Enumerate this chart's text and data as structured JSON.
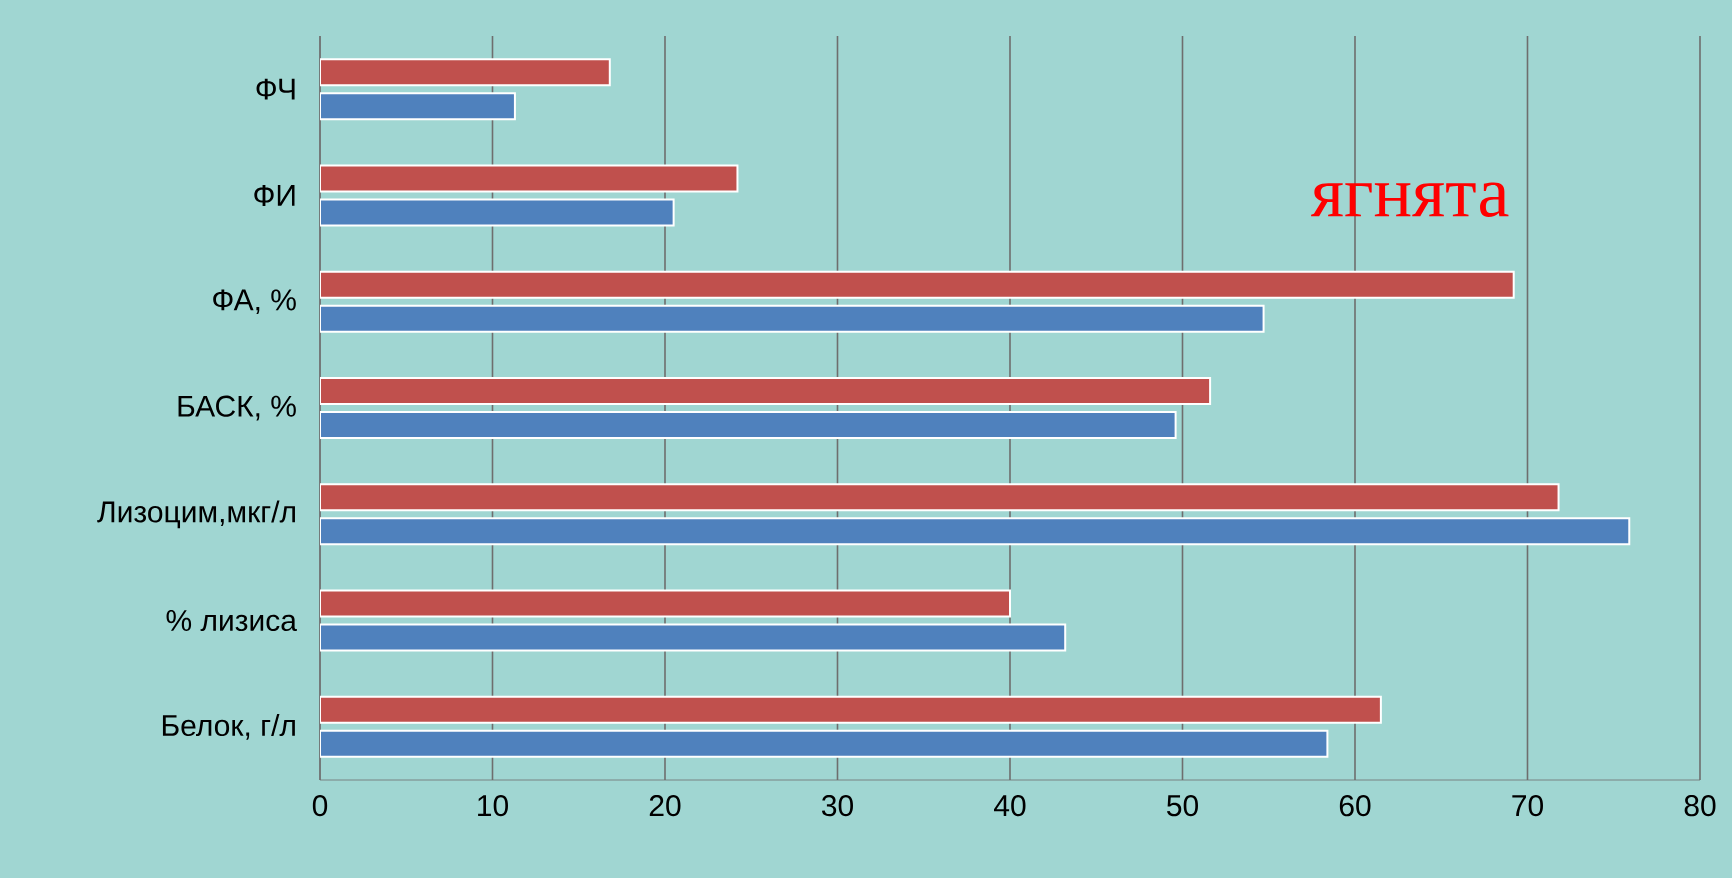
{
  "chart_data": {
    "type": "bar",
    "orientation": "horizontal",
    "categories": [
      "ФЧ",
      "ФИ",
      "ФА, %",
      "БАСК, %",
      "Лизоцим,мкг/л",
      "% лизиса",
      "Белок, г/л"
    ],
    "series": [
      {
        "color": "#c0504d",
        "values": [
          16.8,
          24.2,
          69.2,
          51.6,
          71.8,
          40.0,
          61.5
        ]
      },
      {
        "color": "#4f81bd",
        "values": [
          11.3,
          20.5,
          54.7,
          49.6,
          75.9,
          43.2,
          58.4
        ]
      }
    ],
    "xlim": [
      0,
      80
    ],
    "xticks": [
      0,
      10,
      20,
      30,
      40,
      50,
      60,
      70,
      80
    ],
    "grid": "x",
    "annotations": [
      "ягнята"
    ]
  }
}
